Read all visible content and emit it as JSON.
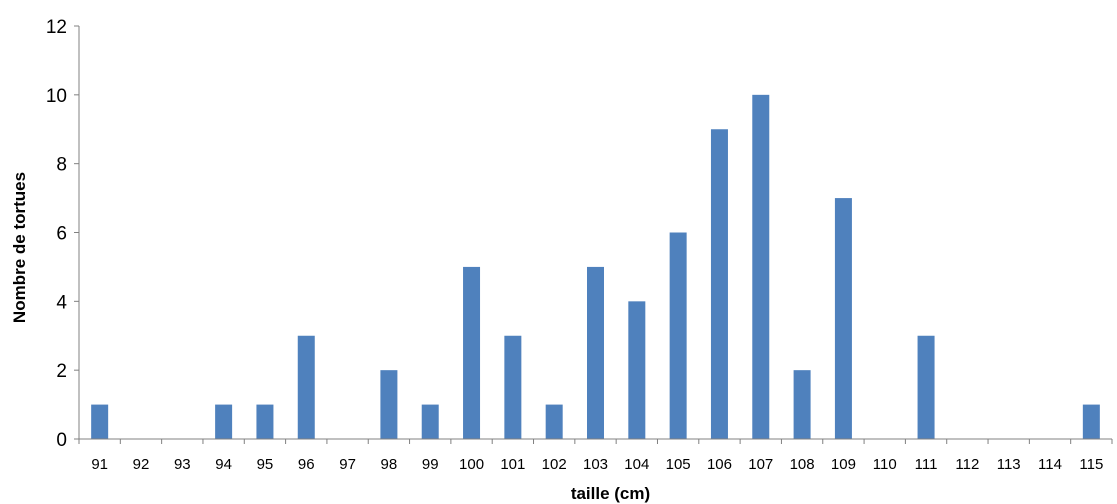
{
  "chart_data": {
    "type": "bar",
    "title": "",
    "xlabel": "taille (cm)",
    "ylabel": "Nombre de tortues",
    "ylim": [
      0,
      12
    ],
    "yticks": [
      0,
      2,
      4,
      6,
      8,
      10,
      12
    ],
    "grid": false,
    "categories": [
      "91",
      "92",
      "93",
      "94",
      "95",
      "96",
      "97",
      "98",
      "99",
      "100",
      "101",
      "102",
      "103",
      "104",
      "105",
      "106",
      "107",
      "108",
      "109",
      "110",
      "111",
      "112",
      "113",
      "114",
      "115"
    ],
    "values": [
      1,
      0,
      0,
      1,
      1,
      3,
      0,
      2,
      1,
      5,
      3,
      1,
      5,
      4,
      6,
      9,
      10,
      2,
      7,
      0,
      3,
      0,
      0,
      0,
      1
    ],
    "bar_color": "#4F81BD"
  }
}
